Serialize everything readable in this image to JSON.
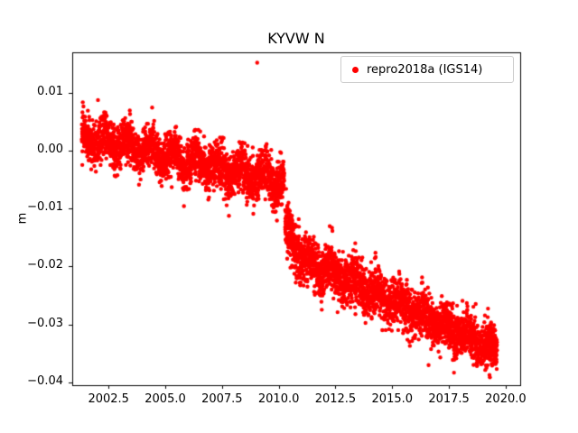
{
  "figure": {
    "background": "#ffffff"
  },
  "chart_data": {
    "type": "scatter",
    "title": "KYVW N",
    "xlabel": "",
    "ylabel": "m",
    "legend_label": "repro2018a (IGS14)",
    "legend_position": "upper right",
    "color": "#ff0000",
    "marker_radius_px": 2.2,
    "grid": false,
    "xlim": [
      2000.9,
      2020.64
    ],
    "ylim": [
      -0.0405,
      0.017
    ],
    "xticks": [
      2002.5,
      2005.0,
      2007.5,
      2010.0,
      2012.5,
      2015.0,
      2017.5,
      2020.0
    ],
    "xtick_labels": [
      "2002.5",
      "2005.0",
      "2007.5",
      "2010.0",
      "2012.5",
      "2015.0",
      "2017.5",
      "2020.0"
    ],
    "yticks": [
      0.01,
      0.0,
      -0.01,
      -0.02,
      -0.03,
      -0.04
    ],
    "ytick_labels": [
      "0.01",
      "0.00",
      "−0.01",
      "−0.02",
      "−0.03",
      "−0.04"
    ],
    "description": "GPS daily position time series, north component, station KYVW; slow southward trend with a coseismic offset near 2010.3 followed by faster decay",
    "seed": 42,
    "segments": [
      {
        "x_start": 2001.32,
        "x_end": 2010.24,
        "y_start": 0.0025,
        "y_end": -0.0055,
        "noise_sd": 0.0019,
        "seasonal_amp": 0.0013,
        "points": 2400
      },
      {
        "x_start": 2010.28,
        "x_end": 2011.2,
        "y_start": -0.0135,
        "y_end": -0.019,
        "noise_sd": 0.0022,
        "seasonal_amp": 0.001,
        "points": 280
      },
      {
        "x_start": 2011.2,
        "x_end": 2019.62,
        "y_start": -0.019,
        "y_end": -0.0345,
        "noise_sd": 0.002,
        "seasonal_amp": 0.001,
        "points": 2300
      }
    ],
    "straggler_rate": 0.012,
    "straggler_extra": 0.004,
    "outliers": [
      [
        2009.05,
        0.0152
      ]
    ]
  }
}
